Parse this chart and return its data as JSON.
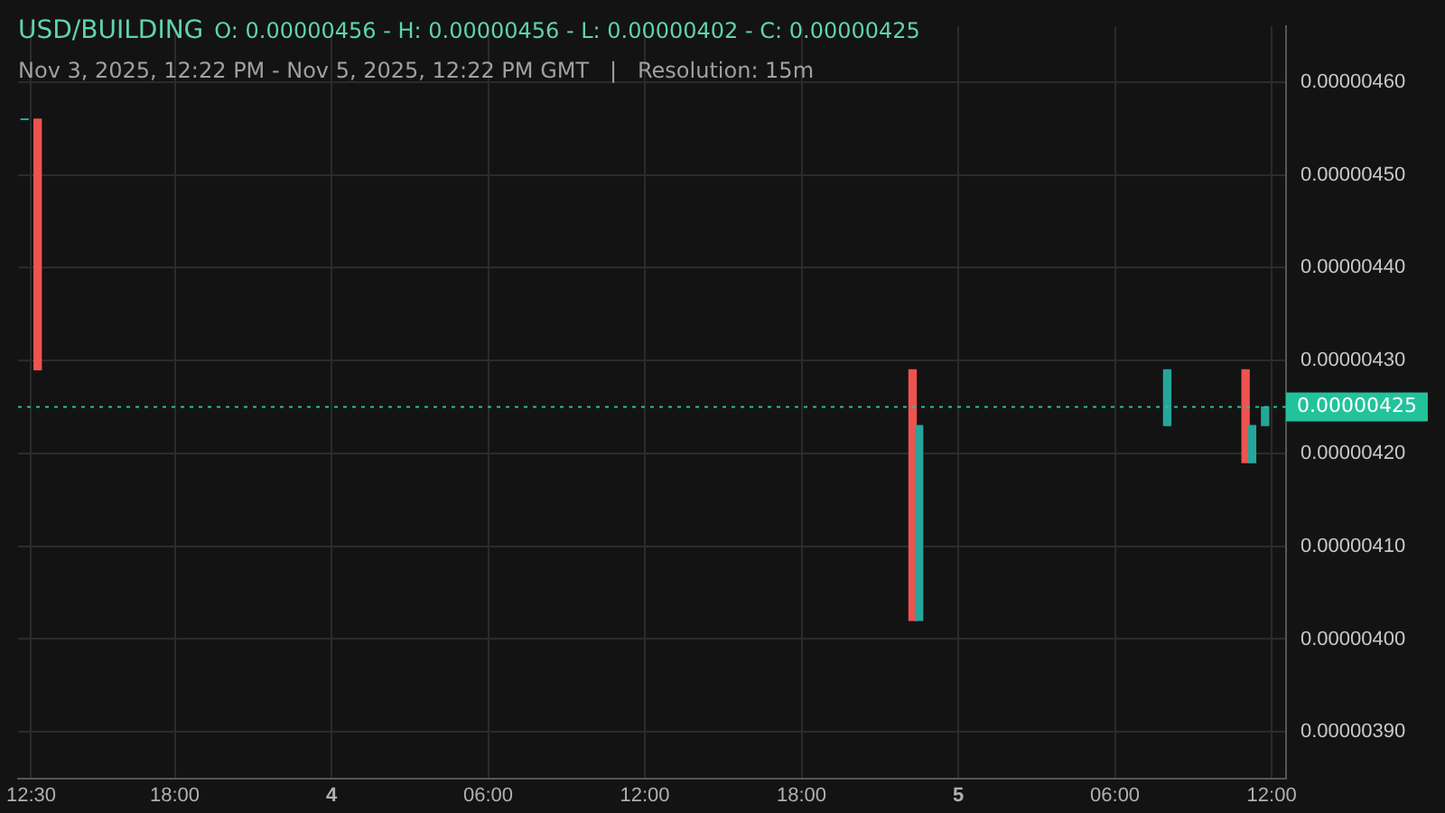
{
  "chart_data": {
    "type": "candlestick",
    "title": "USD/BUILDING",
    "subtitle": "Nov 3, 2025, 12:22 PM - Nov 5, 2025, 12:22 PM GMT   |   Resolution: 15m",
    "annotations": [
      "O: 0.00000456 - H: 0.00000456 - L: 0.00000402 - C: 0.00000425"
    ],
    "x": [
      "2025-11-03T12:15",
      "2025-11-03T12:45",
      "2025-11-04T22:15",
      "2025-11-04T22:30",
      "2025-11-05T08:00",
      "2025-11-05T11:00",
      "2025-11-05T11:15",
      "2025-11-05T11:45"
    ],
    "ohlc": [
      [
        4.56e-06,
        4.56e-06,
        4.56e-06,
        4.56e-06
      ],
      [
        4.56e-06,
        4.56e-06,
        4.29e-06,
        4.29e-06
      ],
      [
        4.29e-06,
        4.29e-06,
        4.02e-06,
        4.02e-06
      ],
      [
        4.02e-06,
        4.23e-06,
        4.02e-06,
        4.23e-06
      ],
      [
        4.23e-06,
        4.29e-06,
        4.23e-06,
        4.29e-06
      ],
      [
        4.29e-06,
        4.29e-06,
        4.19e-06,
        4.19e-06
      ],
      [
        4.19e-06,
        4.23e-06,
        4.19e-06,
        4.23e-06
      ],
      [
        4.23e-06,
        4.25e-06,
        4.23e-06,
        4.25e-06
      ]
    ],
    "colors": [
      "#26a69a",
      "#ef5350",
      "#ef5350",
      "#26a69a",
      "#26a69a",
      "#ef5350",
      "#26a69a",
      "#26a69a"
    ],
    "xlim": [
      "2025-11-03T12:00",
      "2025-11-05T12:33"
    ],
    "xticks": [
      {
        "value": "2025-11-03T12:30",
        "label": "12:30"
      },
      {
        "value": "2025-11-03T18:00",
        "label": "18:00"
      },
      {
        "value": "2025-11-04T00:00",
        "label": "4"
      },
      {
        "value": "2025-11-04T06:00",
        "label": "06:00"
      },
      {
        "value": "2025-11-04T12:00",
        "label": "12:00"
      },
      {
        "value": "2025-11-04T18:00",
        "label": "18:00"
      },
      {
        "value": "2025-11-05T00:00",
        "label": "5"
      },
      {
        "value": "2025-11-05T06:00",
        "label": "06:00"
      },
      {
        "value": "2025-11-05T12:00",
        "label": "12:00"
      }
    ],
    "ylim": [
      3.85e-06,
      4.66e-06
    ],
    "yticks": [
      {
        "value": 3.9e-06,
        "label": "0.00000390"
      },
      {
        "value": 4e-06,
        "label": "0.00000400"
      },
      {
        "value": 4.1e-06,
        "label": "0.00000410"
      },
      {
        "value": 4.2e-06,
        "label": "0.00000420"
      },
      {
        "value": 4.3e-06,
        "label": "0.00000430"
      },
      {
        "value": 4.4e-06,
        "label": "0.00000440"
      },
      {
        "value": 4.5e-06,
        "label": "0.00000450"
      },
      {
        "value": 4.6e-06,
        "label": "0.00000460"
      }
    ],
    "ref_lines": [
      {
        "axis": "y",
        "value": 4.25e-06,
        "label": "0.00000425",
        "color": "#22c39b",
        "line_style": "dotted"
      }
    ],
    "grid": true,
    "legend": false
  }
}
